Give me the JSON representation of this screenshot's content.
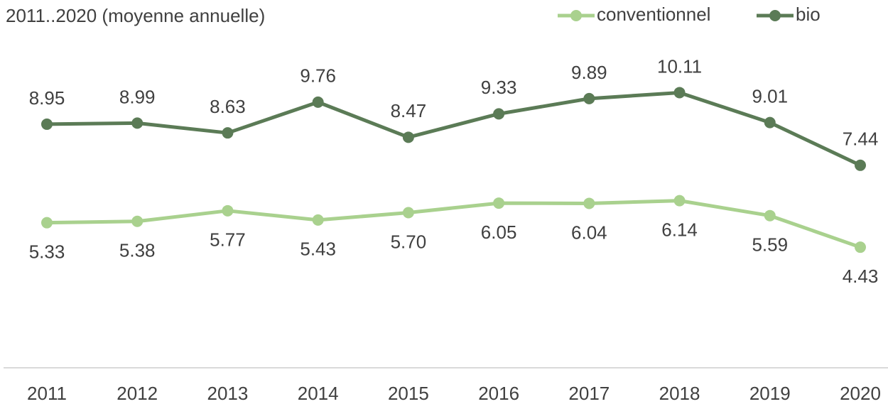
{
  "chart_data": {
    "type": "line",
    "subtitle": "2011..2020  (moyenne annuelle)",
    "categories": [
      "2011",
      "2012",
      "2013",
      "2014",
      "2015",
      "2016",
      "2017",
      "2018",
      "2019",
      "2020"
    ],
    "series": [
      {
        "name": "conventionnel",
        "color": "#a9d18e",
        "values": [
          5.33,
          5.38,
          5.77,
          5.43,
          5.7,
          6.05,
          6.04,
          6.14,
          5.59,
          4.43
        ],
        "value_labels": [
          "5.33",
          "5.38",
          "5.77",
          "5.43",
          "5.70",
          "6.05",
          "6.04",
          "6.14",
          "5.59",
          "4.43"
        ]
      },
      {
        "name": "bio",
        "color": "#5b7b56",
        "values": [
          8.95,
          8.99,
          8.63,
          9.76,
          8.47,
          9.33,
          9.89,
          10.11,
          9.01,
          7.44
        ],
        "value_labels": [
          "8.95",
          "8.99",
          "8.63",
          "9.76",
          "8.47",
          "9.33",
          "9.89",
          "10.11",
          "9.01",
          "7.44"
        ]
      }
    ],
    "ylim": [
      0,
      12
    ],
    "legend": "top-right"
  }
}
